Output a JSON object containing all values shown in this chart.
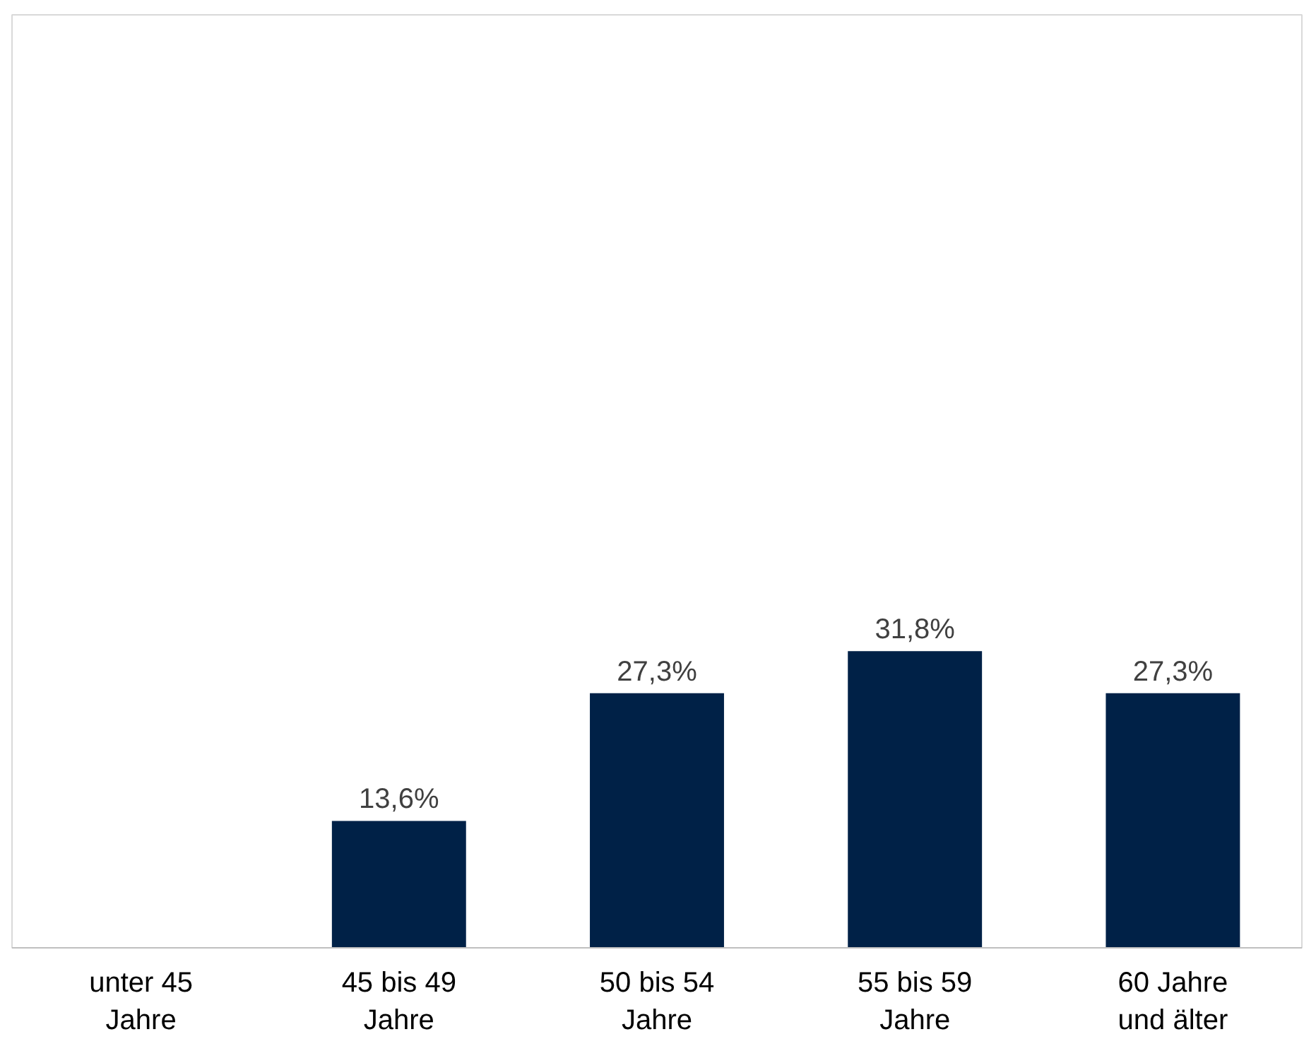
{
  "chart_data": {
    "type": "bar",
    "categories": [
      "unter 45\nJahre",
      "45 bis 49\nJahre",
      "50 bis 54\nJahre",
      "55 bis 59\nJahre",
      "60 Jahre\nund älter"
    ],
    "values": [
      0,
      13.6,
      27.3,
      31.8,
      27.3
    ],
    "value_labels": [
      null,
      "13,6%",
      "27,3%",
      "31,8%",
      "27,3%"
    ],
    "color": "#002147",
    "ylim": [
      0,
      100
    ],
    "tick_labels": "x",
    "grid": false
  }
}
